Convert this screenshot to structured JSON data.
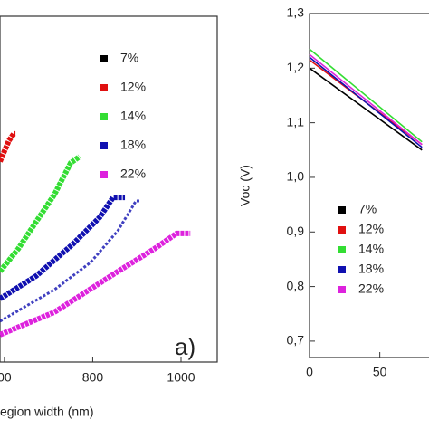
{
  "chart_data": [
    {
      "type": "scatter",
      "xlabel": "egion width (nm)",
      "annotation": "a)",
      "xlim": [
        590,
        1082
      ],
      "xticks": [
        {
          "value": 600,
          "label": "00"
        },
        800,
        1000
      ],
      "ylim": [
        0,
        10
      ],
      "series": [
        {
          "name": "7%",
          "color": "#000000",
          "x": [],
          "values": []
        },
        {
          "name": "12%",
          "color": "#e01010",
          "x": [
            590,
            600,
            610,
            621,
            625
          ],
          "values": [
            5.8,
            6.1,
            6.4,
            6.6,
            6.6
          ]
        },
        {
          "name": "14%",
          "color": "#33dd33",
          "x": [
            590,
            631,
            672,
            713,
            750,
            770
          ],
          "values": [
            2.62,
            3.27,
            4.06,
            4.84,
            5.76,
            5.94
          ]
        },
        {
          "name": "18%",
          "color": "#1010b0",
          "x": [
            590,
            672,
            754,
            816,
            846,
            873
          ],
          "values": [
            1.83,
            2.49,
            3.4,
            4.19,
            4.76,
            4.76
          ]
        },
        {
          "color": "#1010b0",
          "x": [
            590,
            713,
            795,
            857,
            898,
            908
          ],
          "values": [
            1.18,
            2.09,
            2.88,
            3.8,
            4.66,
            4.66
          ]
        },
        {
          "name": "22%",
          "color": "#dd22dd",
          "x": [
            590,
            713,
            857,
            939,
            990,
            1021
          ],
          "values": [
            0.79,
            1.44,
            2.62,
            3.27,
            3.72,
            3.72
          ]
        }
      ]
    },
    {
      "type": "line",
      "ylabel": "Voc (V)",
      "xlim": [
        0,
        85
      ],
      "xticks": [
        0,
        50
      ],
      "ylim": [
        0.67,
        1.3
      ],
      "yticks": [
        {
          "value": 0.7,
          "label": "0,7"
        },
        {
          "value": 0.8,
          "label": "0,8"
        },
        {
          "value": 0.9,
          "label": "0,9"
        },
        {
          "value": 1.0,
          "label": "1,0"
        },
        {
          "value": 1.1,
          "label": "1,1"
        },
        {
          "value": 1.2,
          "label": "1,2"
        },
        {
          "value": 1.3,
          "label": "1,3"
        }
      ],
      "series": [
        {
          "name": "7%",
          "color": "#000000",
          "x": [
            0,
            80
          ],
          "values": [
            1.2,
            1.05
          ]
        },
        {
          "name": "12%",
          "color": "#e01010",
          "x": [
            0,
            80
          ],
          "values": [
            1.215,
            1.06
          ]
        },
        {
          "name": "14%",
          "color": "#33dd33",
          "x": [
            0,
            80
          ],
          "values": [
            1.235,
            1.065
          ]
        },
        {
          "name": "18%",
          "color": "#1010b0",
          "x": [
            0,
            80
          ],
          "values": [
            1.22,
            1.055
          ]
        },
        {
          "name": "22%",
          "color": "#dd22dd",
          "x": [
            0,
            80
          ],
          "values": [
            1.225,
            1.06
          ]
        }
      ]
    }
  ]
}
